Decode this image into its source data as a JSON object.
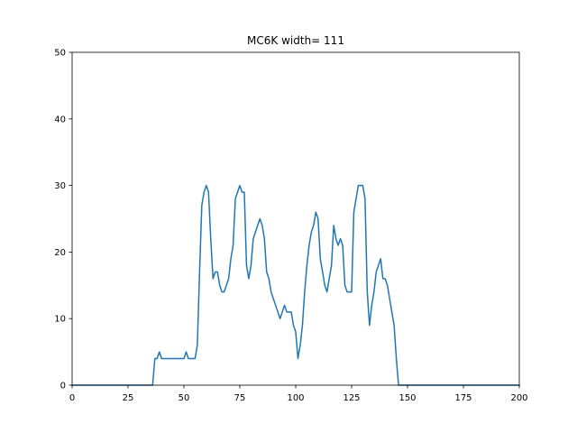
{
  "chart_data": {
    "type": "line",
    "title": "MC6K width= 111",
    "xlabel": "",
    "ylabel": "",
    "xlim": [
      0,
      200
    ],
    "ylim": [
      0,
      50
    ],
    "x_ticks": [
      0,
      25,
      50,
      75,
      100,
      125,
      150,
      175,
      200
    ],
    "y_ticks": [
      0,
      10,
      20,
      30,
      40,
      50
    ],
    "grid": false,
    "series": [
      {
        "color": "#1f77b4",
        "x": [
          0,
          34,
          35,
          36,
          37,
          38,
          39,
          40,
          41,
          42,
          43,
          44,
          45,
          46,
          47,
          48,
          49,
          50,
          51,
          52,
          53,
          54,
          55,
          56,
          57,
          58,
          59,
          60,
          61,
          62,
          63,
          64,
          65,
          66,
          67,
          68,
          69,
          70,
          71,
          72,
          73,
          74,
          75,
          76,
          77,
          78,
          79,
          80,
          81,
          82,
          83,
          84,
          85,
          86,
          87,
          88,
          89,
          90,
          91,
          92,
          93,
          94,
          95,
          96,
          97,
          98,
          99,
          100,
          101,
          102,
          103,
          104,
          105,
          106,
          107,
          108,
          109,
          110,
          111,
          112,
          113,
          114,
          115,
          116,
          117,
          118,
          119,
          120,
          121,
          122,
          123,
          124,
          125,
          126,
          127,
          128,
          129,
          130,
          131,
          132,
          133,
          134,
          135,
          136,
          137,
          138,
          139,
          140,
          141,
          142,
          143,
          144,
          145,
          146,
          200
        ],
        "values": [
          0,
          0,
          0,
          0,
          4,
          4,
          5,
          4,
          4,
          4,
          4,
          4,
          4,
          4,
          4,
          4,
          4,
          4,
          5,
          4,
          4,
          4,
          4,
          6,
          17,
          27,
          29,
          30,
          29,
          22,
          16,
          17,
          17,
          15,
          14,
          14,
          15,
          16,
          19,
          21,
          28,
          29,
          30,
          29,
          29,
          18,
          16,
          18,
          22,
          23,
          24,
          25,
          24,
          22,
          17,
          16,
          14,
          13,
          12,
          11,
          10,
          11,
          12,
          11,
          11,
          11,
          9,
          8,
          4,
          6,
          9,
          14,
          18,
          21,
          23,
          24,
          26,
          25,
          19,
          17,
          15,
          14,
          16,
          18,
          24,
          22,
          21,
          22,
          21,
          15,
          14,
          14,
          14,
          26,
          28,
          30,
          30,
          30,
          28,
          14,
          9,
          12,
          14,
          17,
          18,
          19,
          16,
          16,
          15,
          13,
          11,
          9,
          4,
          0,
          0
        ]
      }
    ]
  }
}
